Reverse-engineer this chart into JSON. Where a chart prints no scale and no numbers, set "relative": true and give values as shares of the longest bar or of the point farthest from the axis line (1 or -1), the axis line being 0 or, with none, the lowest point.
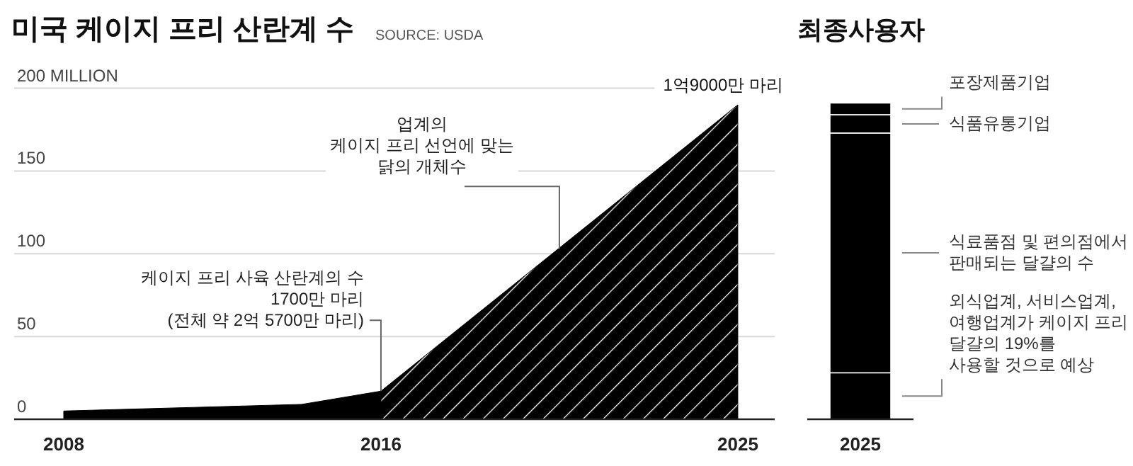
{
  "chart_data": [
    {
      "type": "area",
      "title": "미국 케이지 프리 산란계 수",
      "annotations": [
        "SOURCE: USDA",
        {
          "text": "1억9000만 마리",
          "x": 2025,
          "y": 190
        },
        {
          "text": "업계의\n케이지 프리 선언에 맞는\n닭의 개체수",
          "x": 2020.5,
          "y": 103
        },
        {
          "text": "케이지 프리 사육 산란계의 수\n1700만 마리\n(전체 약 2억 5700만 마리)",
          "x": 2016,
          "y": 17
        }
      ],
      "series": [
        {
          "color": "#000000",
          "x": [
            2008,
            2011,
            2014,
            2016
          ],
          "values": [
            5,
            7,
            9,
            17
          ]
        },
        {
          "color": "#000000",
          "x": [
            2016,
            2025
          ],
          "values": [
            17,
            190
          ]
        }
      ],
      "xlim": [
        2006.75,
        2025.93
      ],
      "ylim": [
        0,
        200
      ],
      "xticks": [
        2008,
        2016,
        2025
      ],
      "yticks": [
        0,
        50,
        100,
        150,
        {
          "value": 200,
          "label": "200 MILLION"
        }
      ],
      "grid": "y"
    },
    {
      "type": "bar",
      "title": "최종사용자",
      "stacked": true,
      "relative": true,
      "categories": [
        "2025"
      ],
      "series": [
        {
          "name": "외식업계, 서비스업계,\n여행업계가 케이지 프리\n달걀의 19%를\n사용할 것으로 예상",
          "color": "#000000",
          "values": [
            0.147
          ]
        },
        {
          "name": "식료품점 및 편의점에서\n판매되는 달걀의 수",
          "color": "#000000",
          "values": [
            0.758
          ]
        },
        {
          "name": "식품유통기업",
          "color": "#000000",
          "values": [
            0.058
          ]
        },
        {
          "name": "포장제품기업",
          "color": "#000000",
          "values": [
            0.037
          ]
        }
      ]
    }
  ]
}
